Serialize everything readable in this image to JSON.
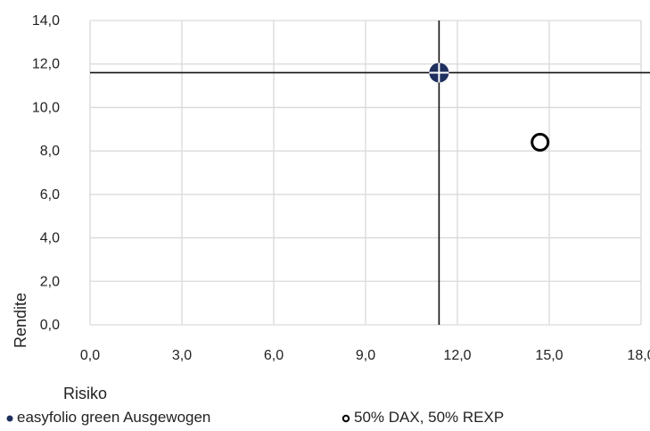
{
  "chart_data": {
    "type": "scatter",
    "xlabel": "Risiko",
    "ylabel": "Rendite",
    "xlim": [
      0,
      18
    ],
    "ylim": [
      0,
      14
    ],
    "x_ticks": [
      "0,0",
      "3,0",
      "6,0",
      "9,0",
      "12,0",
      "15,0",
      "18,0"
    ],
    "y_ticks": [
      "0,0",
      "2,0",
      "4,0",
      "6,0",
      "8,0",
      "10,0",
      "12,0",
      "14,0"
    ],
    "grid": true,
    "legend_position": "bottom",
    "series": [
      {
        "name": "easyfolio green Ausgewogen",
        "marker": "filled-circle-crosshair",
        "color": "#1f2f5e",
        "points": [
          {
            "x": 11.4,
            "y": 11.6
          }
        ]
      },
      {
        "name": "50% DAX, 50% REXP",
        "marker": "open-circle",
        "color": "#000000",
        "points": [
          {
            "x": 14.7,
            "y": 8.4
          }
        ]
      }
    ]
  }
}
